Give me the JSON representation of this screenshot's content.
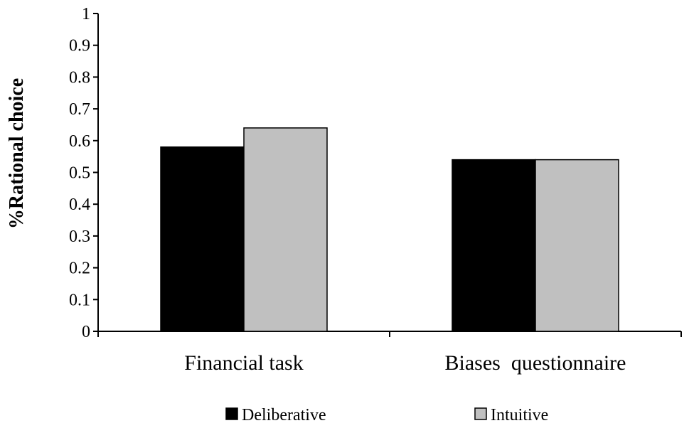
{
  "chart_data": {
    "type": "bar",
    "title": "",
    "xlabel": "",
    "ylabel": "%Rational choice",
    "ylim": [
      0,
      1
    ],
    "yticks": [
      "0",
      "0.1",
      "0.2",
      "0.3",
      "0.4",
      "0.5",
      "0.6",
      "0.7",
      "0.8",
      "0.9",
      "1"
    ],
    "categories": [
      "Financial task",
      "Biases  questionnaire"
    ],
    "series": [
      {
        "name": "Deliberative",
        "color": "#000000",
        "values": [
          0.58,
          0.54
        ]
      },
      {
        "name": "Intuitive",
        "color": "#c0c0c0",
        "values": [
          0.64,
          0.54
        ]
      }
    ],
    "grid": false,
    "legend_position": "bottom"
  }
}
